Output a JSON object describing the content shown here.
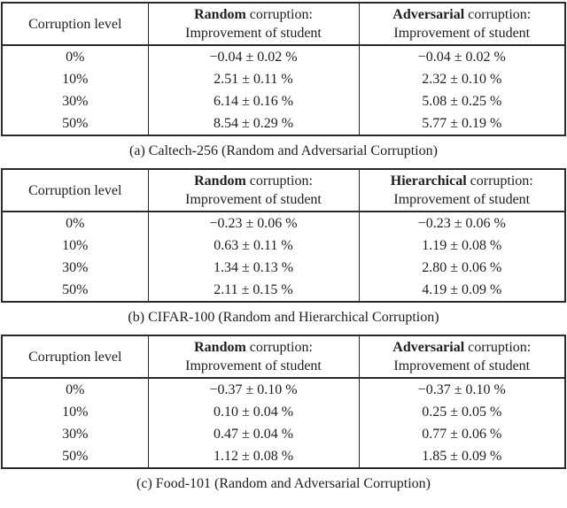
{
  "colors": {
    "background": "#ffffff",
    "text": "#1d1d1d",
    "rule": "#2a2a2a"
  },
  "tables": [
    {
      "caption": "(a) Caltech-256 (Random and Adversarial Corruption)",
      "header": {
        "level_label": "Corruption level",
        "col2": {
          "bold": "Random",
          "rest": " corruption:",
          "line2": "Improvement of student"
        },
        "col3": {
          "bold": "Adversarial",
          "rest": " corruption:",
          "line2": "Improvement of student"
        }
      },
      "rows": [
        {
          "level": "0%",
          "col2": "−0.04 ± 0.02 %",
          "col3": "−0.04 ± 0.02 %"
        },
        {
          "level": "10%",
          "col2": "2.51 ± 0.11 %",
          "col3": "2.32 ± 0.10 %"
        },
        {
          "level": "30%",
          "col2": "6.14 ± 0.16 %",
          "col3": "5.08 ± 0.25 %"
        },
        {
          "level": "50%",
          "col2": "8.54 ± 0.29 %",
          "col3": "5.77 ± 0.19 %"
        }
      ]
    },
    {
      "caption": "(b) CIFAR-100 (Random and Hierarchical Corruption)",
      "header": {
        "level_label": "Corruption level",
        "col2": {
          "bold": "Random",
          "rest": " corruption:",
          "line2": "Improvement of student"
        },
        "col3": {
          "bold": "Hierarchical",
          "rest": " corruption:",
          "line2": "Improvement of student"
        }
      },
      "rows": [
        {
          "level": "0%",
          "col2": "−0.23 ± 0.06 %",
          "col3": "−0.23 ± 0.06 %"
        },
        {
          "level": "10%",
          "col2": "0.63 ± 0.11 %",
          "col3": "1.19 ± 0.08 %"
        },
        {
          "level": "30%",
          "col2": "1.34 ± 0.13 %",
          "col3": "2.80 ± 0.06 %"
        },
        {
          "level": "50%",
          "col2": "2.11 ± 0.15 %",
          "col3": "4.19 ± 0.09 %"
        }
      ]
    },
    {
      "caption": "(c) Food-101 (Random and Adversarial Corruption)",
      "header": {
        "level_label": "Corruption level",
        "col2": {
          "bold": "Random",
          "rest": " corruption:",
          "line2": "Improvement of student"
        },
        "col3": {
          "bold": "Adversarial",
          "rest": " corruption:",
          "line2": "Improvement of student"
        }
      },
      "rows": [
        {
          "level": "0%",
          "col2": "−0.37 ± 0.10 %",
          "col3": "−0.37 ± 0.10 %"
        },
        {
          "level": "10%",
          "col2": "0.10 ± 0.04 %",
          "col3": "0.25 ± 0.05 %"
        },
        {
          "level": "30%",
          "col2": "0.47 ± 0.04 %",
          "col3": "0.77 ± 0.06 %"
        },
        {
          "level": "50%",
          "col2": "1.12 ± 0.08 %",
          "col3": "1.85 ± 0.09 %"
        }
      ]
    }
  ]
}
